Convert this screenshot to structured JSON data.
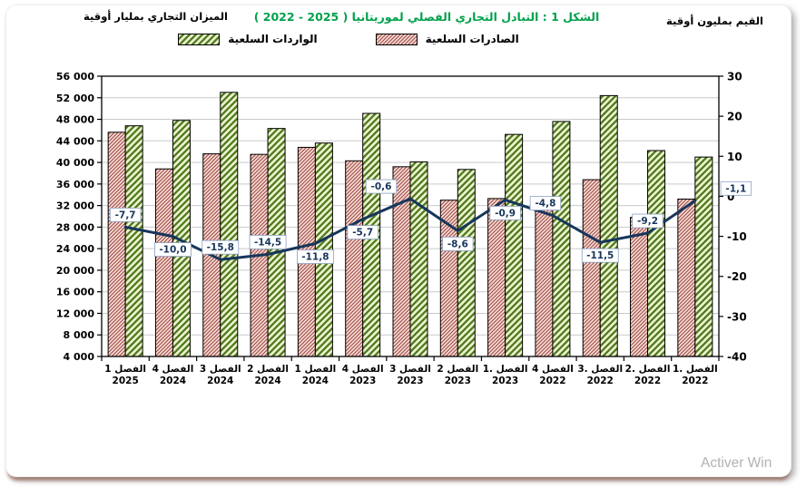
{
  "watermark": {
    "line1": "Activer Win"
  },
  "chart_data": {
    "type": "bar+line",
    "title": "الشكل 1 : التبادل التجاري الفصلي لموريتانيا ‪( 2022  -   2025 )‬",
    "left_axis_title": "الميزان التجاري بمليار أوقية",
    "right_axis_title": "القيم بمليون أوقية",
    "left_axis": {
      "min": 4000,
      "max": 56000,
      "step": 4000
    },
    "right_axis": {
      "min": -40,
      "max": 30,
      "step": 10
    },
    "grid": "horizontal",
    "legend_position": "top",
    "categories": [
      {
        "quarter": "الفصل 1",
        "year": "2025"
      },
      {
        "quarter": "الفصل 4",
        "year": "2024"
      },
      {
        "quarter": "الفصل 3",
        "year": "2024"
      },
      {
        "quarter": "الفصل 2",
        "year": "2024"
      },
      {
        "quarter": "الفصل 1",
        "year": "2024"
      },
      {
        "quarter": "الفصل 4",
        "year": "2023"
      },
      {
        "quarter": "الفصل 3",
        "year": "2023"
      },
      {
        "quarter": "الفصل 2",
        "year": "2023"
      },
      {
        "quarter": "الفصل .1",
        "year": "2023"
      },
      {
        "quarter": "الفصل 4",
        "year": "2022"
      },
      {
        "quarter": "الفصل .3",
        "year": "2022"
      },
      {
        "quarter": "الفصل .2",
        "year": "2022"
      },
      {
        "quarter": "الفصل .1",
        "year": "2022"
      }
    ],
    "series": [
      {
        "name": "الواردات السلعية",
        "type": "bar",
        "role": "imports",
        "fill": "#edf2cf",
        "hatch": "#4f7a1e",
        "values": [
          46800,
          47800,
          53000,
          46300,
          43600,
          49100,
          40100,
          38700,
          45200,
          47600,
          52400,
          42200,
          41000
        ]
      },
      {
        "name": "الصادرات السلعية",
        "type": "bar",
        "role": "exports",
        "fill": "#f7dcd8",
        "hatch": "#9c4a3f",
        "values": [
          45600,
          38800,
          41600,
          41500,
          42800,
          40300,
          39200,
          33000,
          33300,
          32500,
          36800,
          29800,
          33200
        ]
      },
      {
        "type": "line",
        "role": "balance",
        "color": "#16365c",
        "values": [
          -7.7,
          -10.0,
          -15.8,
          -14.5,
          -11.8,
          -5.7,
          -0.6,
          -8.6,
          -0.9,
          -4.8,
          -11.5,
          -9.2,
          -1.1
        ],
        "labels": [
          "-7,7",
          "-10,0",
          "-15,8",
          "-14,5",
          "-11,8",
          "-5,7",
          "-0,6",
          "-8,6",
          "-0,9",
          "-4,8",
          "-11,5",
          "-9,2",
          "-1,1"
        ],
        "label_side": [
          "above",
          "below",
          "above",
          "above",
          "below",
          "below",
          "above",
          "below",
          "below",
          "above",
          "below",
          "above",
          "above"
        ],
        "label_dx": [
          0,
          0,
          0,
          0,
          0,
          0,
          -32,
          0,
          0,
          -8,
          0,
          0,
          45
        ]
      }
    ]
  }
}
